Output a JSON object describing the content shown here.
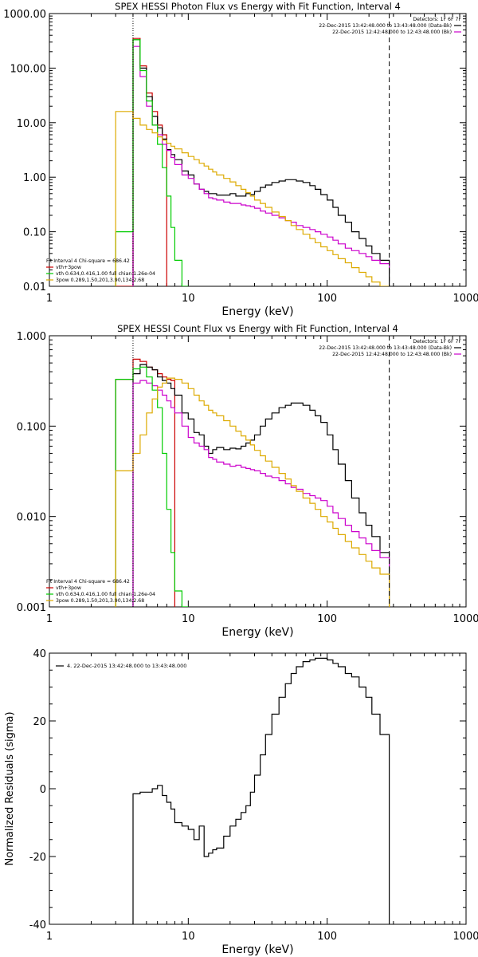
{
  "chart_data": [
    {
      "type": "line",
      "title": "SPEX HESSI Photon Flux vs Energy with Fit Function, Interval 4",
      "xlabel": "Energy (keV)",
      "ylabel": "",
      "xscale": "log",
      "yscale": "log",
      "xlim": [
        1,
        1000
      ],
      "ylim": [
        0.01,
        1000
      ],
      "x_ticks": [
        "1",
        "10",
        "100",
        "1000"
      ],
      "y_ticks": [
        {
          "v": 1000,
          "label": "1000.00"
        },
        {
          "v": 100,
          "label": "100.00"
        },
        {
          "v": 10,
          "label": "10.00"
        },
        {
          "v": 1,
          "label": "1.00"
        },
        {
          "v": 0.1,
          "label": "0.10"
        },
        {
          "v": 0.01,
          "label": "0.01"
        }
      ],
      "legend_topright": [
        {
          "text": "Detectors: 1F 6F 7F",
          "color": ""
        },
        {
          "text": "22-Dec-2015 13:42:48.000 to 13:43:48.000 (Data-Bk)",
          "color": "#000000"
        },
        {
          "text": "22-Dec-2015 12:42:48.000 to 12:43:48.000 (Bk)",
          "color": "#cc00cc"
        }
      ],
      "legend_bottomleft": [
        {
          "text": "Fit Interval 4   Chi-square = 686.42",
          "color": ""
        },
        {
          "text": "vth+3pow",
          "color": "#cc0000"
        },
        {
          "text": "vth 0.634,0.416,1.00  full chian 1.26e-04",
          "color": "#00cc00"
        },
        {
          "text": "3pow 0.289,1.50,201,3.90,134,2.68",
          "color": "#ddaa00"
        }
      ],
      "vlines": [
        {
          "x": 4.0,
          "style": "dotted",
          "color": "#000000"
        },
        {
          "x": 280,
          "style": "dashed",
          "color": "#000000"
        }
      ],
      "series": [
        {
          "color": "#cc0000",
          "edges": [
            3,
            4,
            4.5,
            5,
            5.5,
            6,
            6.5,
            7
          ],
          "values": [
            0.01,
            350,
            110,
            35,
            16,
            9,
            6
          ]
        },
        {
          "color": "#000000",
          "edges": [
            4,
            4.5,
            5,
            5.5,
            6,
            6.5,
            7,
            7.5,
            8,
            9,
            10,
            11,
            12,
            13,
            14,
            15,
            16,
            18,
            20,
            22,
            24,
            26,
            28,
            30,
            33,
            36,
            40,
            45,
            50,
            55,
            60,
            67,
            75,
            82,
            90,
            100,
            110,
            120,
            135,
            150,
            170,
            190,
            210,
            240,
            280
          ],
          "values": [
            330,
            100,
            30,
            13,
            8,
            5,
            3.2,
            2.6,
            2.1,
            1.3,
            1.1,
            0.75,
            0.6,
            0.55,
            0.5,
            0.5,
            0.47,
            0.47,
            0.5,
            0.45,
            0.45,
            0.5,
            0.48,
            0.55,
            0.65,
            0.72,
            0.8,
            0.85,
            0.9,
            0.9,
            0.85,
            0.8,
            0.7,
            0.6,
            0.48,
            0.38,
            0.28,
            0.2,
            0.15,
            0.1,
            0.075,
            0.055,
            0.04,
            0.03
          ]
        },
        {
          "color": "#cc00cc",
          "edges": [
            4,
            4.5,
            5,
            5.5,
            6,
            6.5,
            7,
            7.5,
            8,
            9,
            10,
            11,
            12,
            13,
            14,
            15,
            16,
            18,
            20,
            22,
            24,
            26,
            28,
            30,
            33,
            36,
            40,
            45,
            50,
            55,
            60,
            67,
            75,
            82,
            90,
            100,
            110,
            120,
            135,
            150,
            170,
            190,
            210,
            240,
            280
          ],
          "values": [
            250,
            70,
            20,
            9,
            6,
            4,
            3.1,
            2.3,
            1.7,
            1.1,
            0.95,
            0.75,
            0.6,
            0.5,
            0.42,
            0.4,
            0.38,
            0.35,
            0.33,
            0.33,
            0.31,
            0.3,
            0.29,
            0.27,
            0.24,
            0.22,
            0.2,
            0.18,
            0.16,
            0.15,
            0.13,
            0.12,
            0.11,
            0.1,
            0.09,
            0.08,
            0.07,
            0.06,
            0.05,
            0.045,
            0.04,
            0.035,
            0.03,
            0.026,
            0.022
          ]
        },
        {
          "color": "#00cc00",
          "edges": [
            3,
            4,
            4.5,
            5,
            5.5,
            6,
            6.5,
            7,
            7.5,
            8,
            9,
            10
          ],
          "values": [
            0.1,
            330,
            90,
            25,
            9,
            4,
            1.5,
            0.45,
            0.12,
            0.03,
            0.01
          ]
        },
        {
          "color": "#ddaa00",
          "edges": [
            3,
            4,
            4.5,
            5,
            5.5,
            6,
            6.5,
            7,
            7.5,
            8,
            9,
            10,
            11,
            12,
            13,
            14,
            15,
            16,
            18,
            20,
            22,
            24,
            26,
            28,
            30,
            33,
            36,
            40,
            45,
            50,
            55,
            60,
            67,
            75,
            82,
            90,
            100,
            110,
            120,
            135,
            150,
            170,
            190,
            210,
            240,
            280
          ],
          "values": [
            16,
            12,
            9,
            7.5,
            6.5,
            5.5,
            4.8,
            4.2,
            3.7,
            3.3,
            2.8,
            2.4,
            2.1,
            1.8,
            1.6,
            1.4,
            1.25,
            1.1,
            0.95,
            0.82,
            0.7,
            0.6,
            0.52,
            0.45,
            0.38,
            0.33,
            0.28,
            0.23,
            0.19,
            0.16,
            0.13,
            0.11,
            0.09,
            0.075,
            0.063,
            0.053,
            0.045,
            0.038,
            0.032,
            0.027,
            0.022,
            0.018,
            0.015,
            0.012,
            0.01
          ]
        }
      ]
    },
    {
      "type": "line",
      "title": "SPEX HESSI Count Flux vs Energy with Fit Function, Interval 4",
      "xlabel": "Energy (keV)",
      "ylabel": "",
      "xscale": "log",
      "yscale": "log",
      "xlim": [
        1,
        1000
      ],
      "ylim": [
        0.001,
        1.0
      ],
      "x_ticks": [
        "1",
        "10",
        "100",
        "1000"
      ],
      "y_ticks": [
        {
          "v": 1.0,
          "label": "1.000"
        },
        {
          "v": 0.1,
          "label": "0.100"
        },
        {
          "v": 0.01,
          "label": "0.010"
        },
        {
          "v": 0.001,
          "label": "0.001"
        }
      ],
      "legend_topright": [
        {
          "text": "Detectors: 1F 6F 7F",
          "color": ""
        },
        {
          "text": "22-Dec-2015 13:42:48.000 to 13:43:48.000 (Data-Bk)",
          "color": "#000000"
        },
        {
          "text": "22-Dec-2015 12:42:48.000 to 12:43:48.000 (Bk)",
          "color": "#cc00cc"
        }
      ],
      "legend_bottomleft": [
        {
          "text": "Fit Interval 4   Chi-square = 686.42",
          "color": ""
        },
        {
          "text": "vth+3pow",
          "color": "#cc0000"
        },
        {
          "text": "vth 0.634,0.416,1.00  full chian 1.26e-04",
          "color": "#00cc00"
        },
        {
          "text": "3pow 0.289,1.50,201,3.90,134,2.68",
          "color": "#ddaa00"
        }
      ],
      "vlines": [
        {
          "x": 4.0,
          "style": "dotted",
          "color": "#000000"
        },
        {
          "x": 280,
          "style": "dashed",
          "color": "#000000"
        }
      ],
      "series": [
        {
          "color": "#cc0000",
          "edges": [
            3,
            4,
            4.5,
            5,
            5.5,
            6,
            6.5,
            7,
            7.5,
            8
          ],
          "values": [
            0.33,
            0.55,
            0.52,
            0.45,
            0.42,
            0.38,
            0.35,
            0.33,
            0.32
          ]
        },
        {
          "color": "#000000",
          "edges": [
            4,
            4.5,
            5,
            5.5,
            6,
            6.5,
            7,
            7.5,
            8,
            9,
            10,
            11,
            12,
            13,
            14,
            15,
            16,
            18,
            20,
            22,
            24,
            26,
            28,
            30,
            33,
            36,
            40,
            45,
            50,
            55,
            60,
            67,
            75,
            82,
            90,
            100,
            110,
            120,
            135,
            150,
            170,
            190,
            210,
            240,
            280
          ],
          "values": [
            0.38,
            0.48,
            0.45,
            0.42,
            0.35,
            0.32,
            0.3,
            0.26,
            0.22,
            0.14,
            0.12,
            0.085,
            0.08,
            0.06,
            0.05,
            0.055,
            0.058,
            0.055,
            0.057,
            0.056,
            0.06,
            0.065,
            0.07,
            0.08,
            0.1,
            0.12,
            0.14,
            0.16,
            0.17,
            0.18,
            0.18,
            0.17,
            0.15,
            0.13,
            0.11,
            0.08,
            0.055,
            0.038,
            0.025,
            0.016,
            0.011,
            0.008,
            0.006,
            0.004
          ]
        },
        {
          "color": "#cc00cc",
          "edges": [
            4,
            4.5,
            5,
            5.5,
            6,
            6.5,
            7,
            7.5,
            8,
            9,
            10,
            11,
            12,
            13,
            14,
            15,
            16,
            18,
            20,
            22,
            24,
            26,
            28,
            30,
            33,
            36,
            40,
            45,
            50,
            55,
            60,
            67,
            75,
            82,
            90,
            100,
            110,
            120,
            135,
            150,
            170,
            190,
            210,
            240,
            280
          ],
          "values": [
            0.3,
            0.32,
            0.3,
            0.28,
            0.25,
            0.22,
            0.19,
            0.16,
            0.14,
            0.1,
            0.075,
            0.065,
            0.06,
            0.055,
            0.045,
            0.043,
            0.04,
            0.038,
            0.036,
            0.037,
            0.035,
            0.034,
            0.033,
            0.032,
            0.03,
            0.028,
            0.027,
            0.025,
            0.023,
            0.021,
            0.02,
            0.018,
            0.017,
            0.016,
            0.015,
            0.013,
            0.011,
            0.0095,
            0.008,
            0.0068,
            0.0058,
            0.005,
            0.0042,
            0.0035,
            0.0028
          ]
        },
        {
          "color": "#00cc00",
          "edges": [
            3,
            4,
            4.5,
            5,
            5.5,
            6,
            6.5,
            7,
            7.5,
            8,
            9,
            10
          ],
          "values": [
            0.33,
            0.43,
            0.45,
            0.35,
            0.25,
            0.16,
            0.05,
            0.012,
            0.004,
            0.0015,
            0.001
          ]
        },
        {
          "color": "#ddaa00",
          "edges": [
            3,
            4,
            4.5,
            5,
            5.5,
            6,
            6.5,
            7,
            7.5,
            8,
            9,
            10,
            11,
            12,
            13,
            14,
            15,
            16,
            18,
            20,
            22,
            24,
            26,
            28,
            30,
            33,
            36,
            40,
            45,
            50,
            55,
            60,
            67,
            75,
            82,
            90,
            100,
            110,
            120,
            135,
            150,
            170,
            190,
            210,
            240,
            280
          ],
          "values": [
            0.032,
            0.05,
            0.08,
            0.14,
            0.2,
            0.27,
            0.3,
            0.34,
            0.34,
            0.33,
            0.3,
            0.26,
            0.22,
            0.19,
            0.17,
            0.15,
            0.14,
            0.13,
            0.115,
            0.1,
            0.088,
            0.078,
            0.07,
            0.062,
            0.054,
            0.047,
            0.041,
            0.035,
            0.03,
            0.026,
            0.022,
            0.019,
            0.016,
            0.014,
            0.012,
            0.01,
            0.0087,
            0.0074,
            0.0063,
            0.0053,
            0.0045,
            0.0038,
            0.0032,
            0.0027,
            0.0023
          ]
        }
      ]
    },
    {
      "type": "line",
      "title": "",
      "xlabel": "Energy (keV)",
      "ylabel": "Normalized Residuals (sigma)",
      "xscale": "log",
      "yscale": "linear",
      "xlim": [
        1,
        1000
      ],
      "ylim": [
        -40,
        40
      ],
      "x_ticks": [
        "1",
        "10",
        "100",
        "1000"
      ],
      "y_ticks": [
        {
          "v": 40,
          "label": "40"
        },
        {
          "v": 20,
          "label": "20"
        },
        {
          "v": 0,
          "label": "0"
        },
        {
          "v": -20,
          "label": "-20"
        },
        {
          "v": -40,
          "label": "-40"
        }
      ],
      "legend_topleft": [
        {
          "text": "4. 22-Dec-2015 13:42:48.000 to 13:43:48.000",
          "color": "#000000"
        }
      ],
      "series": [
        {
          "color": "#000000",
          "edges": [
            4,
            4.5,
            5,
            5.5,
            6,
            6.5,
            7,
            7.5,
            8,
            9,
            10,
            11,
            12,
            13,
            14,
            15,
            16,
            18,
            20,
            22,
            24,
            26,
            28,
            30,
            33,
            36,
            40,
            45,
            50,
            55,
            60,
            67,
            75,
            82,
            90,
            100,
            110,
            120,
            135,
            150,
            170,
            190,
            210,
            240,
            280
          ],
          "values": [
            -1.5,
            -1,
            -1,
            0,
            1,
            -2,
            -4,
            -6,
            -10,
            -11,
            -12,
            -15,
            -11,
            -20,
            -19,
            -18,
            -17.5,
            -14,
            -11,
            -9,
            -7,
            -5,
            -1,
            4,
            10,
            16,
            22,
            27,
            31,
            34,
            36,
            37.5,
            38,
            38.5,
            38.5,
            38,
            37,
            36,
            34,
            33,
            30,
            27,
            22,
            16
          ]
        }
      ]
    }
  ]
}
